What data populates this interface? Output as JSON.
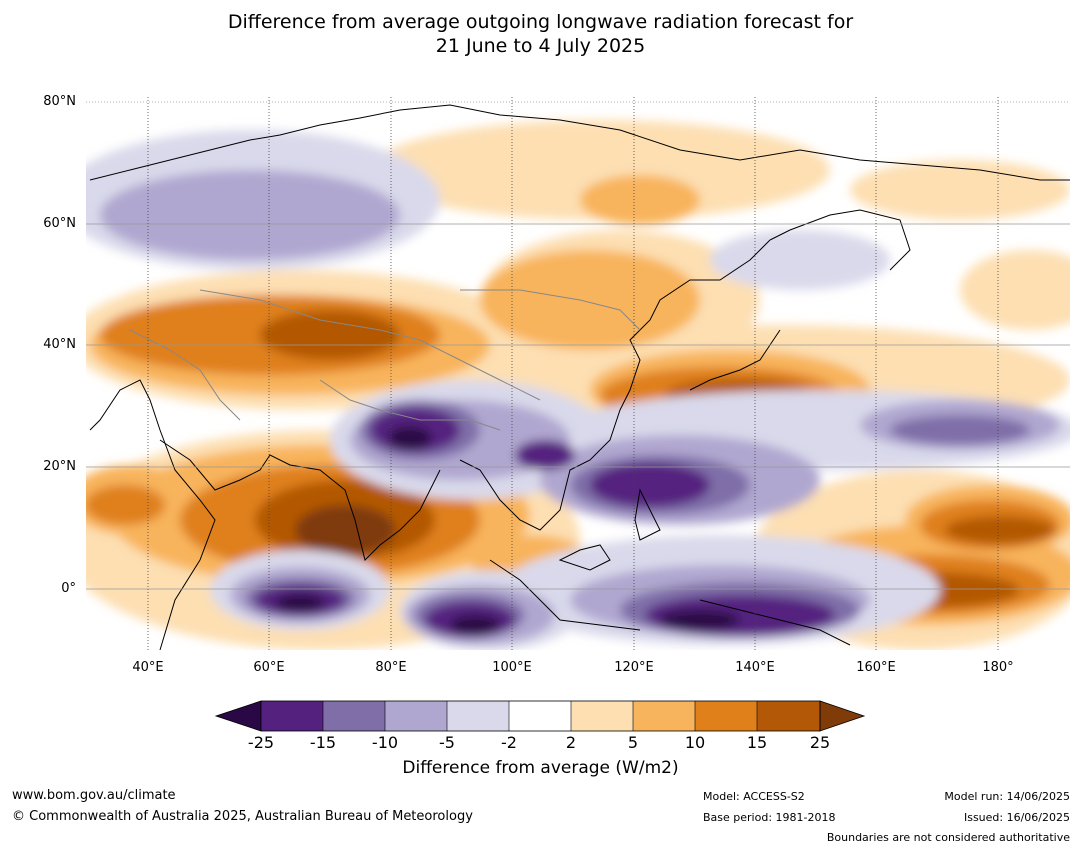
{
  "title": {
    "line1": "Difference from average outgoing longwave radiation forecast for",
    "line2": "21 June to 4 July 2025"
  },
  "map": {
    "latitude_labels": [
      "80°N",
      "60°N",
      "40°N",
      "20°N",
      "0°"
    ],
    "longitude_labels": [
      "40°E",
      "60°E",
      "80°E",
      "100°E",
      "120°E",
      "140°E",
      "160°E",
      "180°"
    ],
    "lon_range": [
      30,
      192
    ],
    "lat_range": [
      -10,
      81
    ]
  },
  "colorbar": {
    "ticks": [
      "-25",
      "-15",
      "-10",
      "-5",
      "-2",
      "2",
      "5",
      "10",
      "15",
      "25"
    ],
    "colors": {
      "below": "#2a0845",
      "-25_-15": "#54217f",
      "-15_-10": "#7f6ea8",
      "-10_-5": "#b0a7d0",
      "-5_-2": "#d9d9eb",
      "-2_2": "#ffffff",
      "2_5": "#fddfb2",
      "5_10": "#f8b45c",
      "10_15": "#df801a",
      "15_25": "#b35806",
      "above": "#7f3b08"
    },
    "label": "Difference from average (W/m2)"
  },
  "footer": {
    "website": "www.bom.gov.au/climate",
    "copyright": "© Commonwealth of Australia 2025, Australian Bureau of Meteorology",
    "model": "Model: ACCESS-S2",
    "base_period": "Base period: 1981-2018",
    "model_run": "Model run: 14/06/2025",
    "issued": "Issued: 16/06/2025",
    "disclaimer": "Boundaries are not considered authoritative"
  }
}
